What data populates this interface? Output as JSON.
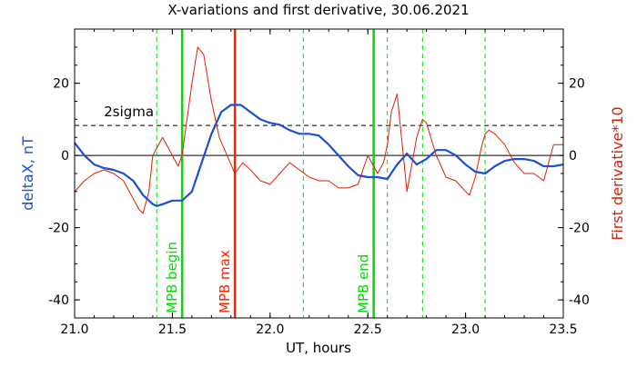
{
  "chart_data": {
    "type": "line",
    "title": "X-variations and first derivative, 30.06.2021",
    "xlabel": "UT, hours",
    "ylabel_left": "deltaX, nT",
    "ylabel_right": "First derivative*10",
    "xlim": [
      21.0,
      23.5
    ],
    "ylim": [
      -45,
      35
    ],
    "xticks": [
      21.0,
      21.5,
      22.0,
      22.5,
      23.0,
      23.5
    ],
    "xtick_labels": [
      "21.0",
      "21.5",
      "22.0",
      "22.5",
      "23.0",
      "23.5"
    ],
    "yticks": [
      -40,
      -20,
      0,
      20
    ],
    "ytick_labels": [
      "-40",
      "-20",
      "0",
      "20"
    ],
    "threshold": {
      "label": "2sigma",
      "value": 8.3
    },
    "markers": [
      {
        "x": 21.55,
        "label": "MPB begin",
        "color": "#00dd00"
      },
      {
        "x": 21.82,
        "label": "MPB max",
        "color": "#ff2200"
      },
      {
        "x": 22.53,
        "label": "MPB end",
        "color": "#00dd00"
      }
    ],
    "dashed_lines_x": [
      21.42,
      22.17,
      22.6,
      22.78,
      23.1
    ],
    "colors": {
      "deltaX": "#1a4fd6",
      "derivative": "#dd1e00",
      "marker_green": "#00dd00",
      "marker_red": "#ff2200"
    },
    "series": [
      {
        "name": "deltaX, nT",
        "axis": "left",
        "x": [
          21.0,
          21.05,
          21.1,
          21.15,
          21.2,
          21.25,
          21.3,
          21.35,
          21.4,
          21.42,
          21.45,
          21.5,
          21.55,
          21.6,
          21.65,
          21.7,
          21.75,
          21.8,
          21.85,
          21.9,
          21.95,
          22.0,
          22.05,
          22.1,
          22.15,
          22.2,
          22.25,
          22.3,
          22.35,
          22.4,
          22.45,
          22.5,
          22.55,
          22.6,
          22.65,
          22.7,
          22.75,
          22.8,
          22.85,
          22.9,
          22.95,
          23.0,
          23.05,
          23.1,
          23.15,
          23.2,
          23.25,
          23.3,
          23.35,
          23.4,
          23.45,
          23.5
        ],
        "y": [
          3.5,
          0,
          -2.5,
          -3.5,
          -4,
          -5,
          -7,
          -11,
          -13.5,
          -14,
          -13.5,
          -12.5,
          -12.5,
          -10,
          -2,
          6,
          12,
          14,
          14,
          12,
          10,
          9,
          8.5,
          7,
          6,
          6,
          5.5,
          3,
          0,
          -3,
          -5.5,
          -6,
          -6,
          -6.5,
          -2.5,
          0.5,
          -2.5,
          -1,
          1.5,
          1.5,
          0,
          -2.5,
          -4.5,
          -5,
          -3,
          -1.5,
          -1,
          -1,
          -1.5,
          -3,
          -3,
          -2.5
        ]
      },
      {
        "name": "First derivative*10",
        "axis": "right",
        "x": [
          21.0,
          21.05,
          21.1,
          21.15,
          21.2,
          21.25,
          21.3,
          21.33,
          21.35,
          21.38,
          21.4,
          21.45,
          21.5,
          21.53,
          21.55,
          21.57,
          21.6,
          21.63,
          21.66,
          21.7,
          21.74,
          21.78,
          21.82,
          21.86,
          21.9,
          21.95,
          22.0,
          22.05,
          22.1,
          22.15,
          22.2,
          22.25,
          22.3,
          22.35,
          22.4,
          22.45,
          22.5,
          22.55,
          22.58,
          22.6,
          22.62,
          22.65,
          22.7,
          22.75,
          22.78,
          22.8,
          22.85,
          22.9,
          22.95,
          23.0,
          23.02,
          23.05,
          23.08,
          23.1,
          23.12,
          23.15,
          23.2,
          23.25,
          23.3,
          23.35,
          23.4,
          23.45,
          23.5
        ],
        "y": [
          -10,
          -7,
          -5,
          -4,
          -5,
          -7,
          -12,
          -15,
          -16,
          -10,
          0,
          5,
          0,
          -3,
          0,
          8,
          20,
          30,
          28,
          15,
          5,
          0,
          -5,
          -2,
          -4,
          -7,
          -8,
          -5,
          -2,
          -4,
          -6,
          -7,
          -7,
          -9,
          -9,
          -8,
          0,
          -5,
          -2,
          3,
          12,
          17,
          -10,
          5,
          10,
          9,
          0,
          -6,
          -7,
          -10,
          -11,
          -6,
          2,
          6,
          7,
          6,
          3,
          -2,
          -5,
          -5,
          -7,
          3,
          3
        ]
      }
    ]
  }
}
